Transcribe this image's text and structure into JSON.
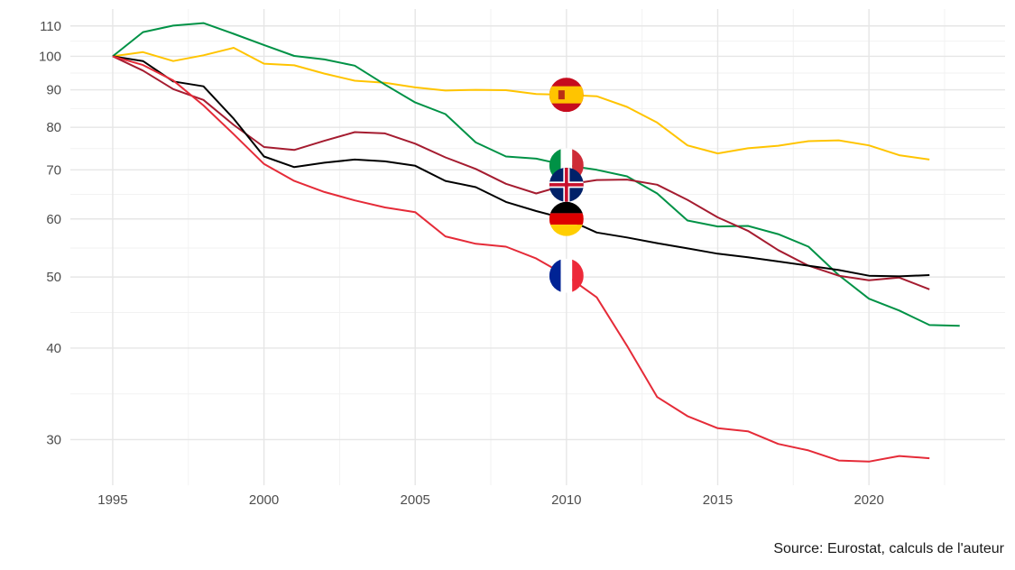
{
  "chart_data": {
    "type": "line",
    "y_scale": "log",
    "ylim": [
      26,
      116
    ],
    "xlim": [
      1993.6,
      2024.5
    ],
    "y_ticks": [
      30,
      40,
      50,
      60,
      70,
      80,
      90,
      100,
      110
    ],
    "y_tick_labels": [
      "30",
      "40",
      "50",
      "60",
      "70",
      "80",
      "90",
      "100",
      "110"
    ],
    "x_ticks": [
      1995,
      2000,
      2005,
      2010,
      2015,
      2020
    ],
    "x_tick_labels": [
      "1995",
      "2000",
      "2005",
      "2010",
      "2015",
      "2020"
    ],
    "grid": true,
    "legend": "none",
    "caption": "Source: Eurostat, calculs de l'auteur",
    "series": [
      {
        "color": "#FFC400",
        "flag": "spain-flag",
        "x": [
          1995,
          1996,
          1997,
          1998,
          1999,
          2000,
          2001,
          2002,
          2003,
          2004,
          2005,
          2006,
          2007,
          2008,
          2009,
          2010,
          2011,
          2012,
          2013,
          2014,
          2015,
          2016,
          2017,
          2018,
          2019,
          2020,
          2021,
          2022
        ],
        "y": [
          100,
          101.3,
          98.5,
          100.3,
          102.7,
          97.7,
          97.2,
          94.7,
          92.6,
          92,
          90.7,
          89.8,
          90,
          89.9,
          88.8,
          88.6,
          88.2,
          85.3,
          81.2,
          75.6,
          73.7,
          74.9,
          75.5,
          76.6,
          76.8,
          75.6,
          73.3,
          72.3
        ]
      },
      {
        "color": "#009246",
        "flag": "italy-flag",
        "x": [
          1995,
          1996,
          1997,
          1998,
          1999,
          2000,
          2001,
          2002,
          2003,
          2004,
          2005,
          2006,
          2007,
          2008,
          2009,
          2010,
          2011,
          2012,
          2013,
          2014,
          2015,
          2016,
          2017,
          2018,
          2019,
          2020,
          2021,
          2022,
          2023
        ],
        "y": [
          100,
          107.9,
          110.1,
          111,
          107.3,
          103.6,
          100.1,
          99,
          97.1,
          91.5,
          86.5,
          83.4,
          76.3,
          73,
          72.5,
          71,
          70,
          68.6,
          65,
          59.7,
          58.6,
          58.7,
          57.2,
          55,
          50.3,
          46.7,
          45,
          43,
          42.9
        ]
      },
      {
        "color": "#A51C30",
        "flag": "uk-flag",
        "x": [
          1995,
          1996,
          1997,
          1998,
          1999,
          2000,
          2001,
          2002,
          2003,
          2004,
          2005,
          2006,
          2007,
          2008,
          2009,
          2010,
          2011,
          2012,
          2013,
          2014,
          2015,
          2016,
          2017,
          2018,
          2019,
          2020,
          2021,
          2022
        ],
        "y": [
          100,
          95.6,
          90.2,
          87.2,
          80.6,
          75.2,
          74.5,
          76.7,
          78.8,
          78.5,
          76,
          72.8,
          70.2,
          67,
          65,
          66.8,
          67.8,
          67.9,
          66.8,
          63.7,
          60.3,
          57.8,
          54.4,
          51.8,
          50.2,
          49.5,
          49.9,
          48.1
        ]
      },
      {
        "color": "#000000",
        "flag": "germany-flag",
        "x": [
          1995,
          1996,
          1997,
          1998,
          1999,
          2000,
          2001,
          2002,
          2003,
          2004,
          2005,
          2006,
          2007,
          2008,
          2009,
          2010,
          2011,
          2012,
          2013,
          2014,
          2015,
          2016,
          2017,
          2018,
          2019,
          2020,
          2021,
          2022
        ],
        "y": [
          100,
          98.5,
          92.4,
          91,
          82.2,
          73,
          70.6,
          71.6,
          72.3,
          71.9,
          70.9,
          67.6,
          66.3,
          63.3,
          61.5,
          60,
          57.5,
          56.6,
          55.6,
          54.7,
          53.8,
          53.2,
          52.5,
          51.8,
          51.1,
          50.2,
          50.1,
          50.3
        ]
      },
      {
        "color": "#E52B38",
        "flag": "france-flag",
        "x": [
          1995,
          1996,
          1997,
          1998,
          1999,
          2000,
          2001,
          2002,
          2003,
          2004,
          2005,
          2006,
          2007,
          2008,
          2009,
          2010,
          2011,
          2012,
          2013,
          2014,
          2015,
          2016,
          2017,
          2018,
          2019,
          2020,
          2021,
          2022
        ],
        "y": [
          100,
          97.3,
          92.7,
          85.7,
          78.3,
          71.3,
          67.6,
          65.3,
          63.6,
          62.2,
          61.3,
          56.8,
          55.5,
          55,
          53,
          50.2,
          46.9,
          40.3,
          34.3,
          32.3,
          31.1,
          30.8,
          29.6,
          29,
          28.1,
          28,
          28.5,
          28.3
        ]
      }
    ]
  }
}
